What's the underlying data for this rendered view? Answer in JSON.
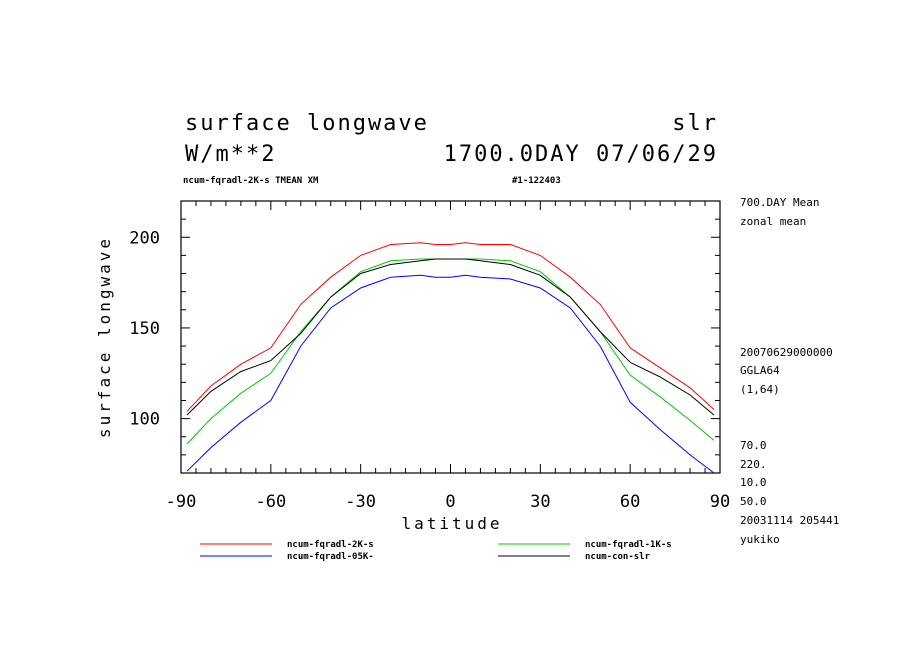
{
  "header": {
    "title_left": "surface longwave",
    "title_right": "slr",
    "unit": "W/m**2",
    "time": "1700.0DAY 07/06/29",
    "run": "ncum-fqradl-2K-s TMEAN XM",
    "run_id": "#1-122403"
  },
  "side_info": {
    "lines_top": [
      "700.DAY Mean",
      "zonal mean"
    ],
    "lines_mid": [
      "20070629000000",
      "GGLA64",
      "(1,64)"
    ],
    "lines_bottom": [
      "70.0",
      "220.",
      "10.0",
      "50.0",
      "20031114 205441",
      "yukiko"
    ]
  },
  "chart_data": {
    "type": "line",
    "title": "surface longwave",
    "xlabel": "latitude",
    "ylabel": "surface longwave",
    "xlim": [
      -90,
      90
    ],
    "ylim": [
      70,
      220
    ],
    "xticks": [
      -90,
      -60,
      -30,
      0,
      30,
      60,
      90
    ],
    "xtick_labels": [
      "-90",
      "-60",
      "-30",
      "0",
      "30",
      "60",
      "90"
    ],
    "yticks": [
      100,
      150,
      200
    ],
    "ytick_labels": [
      "100",
      "150",
      "200"
    ],
    "x": [
      -88,
      -80,
      -70,
      -60,
      -50,
      -40,
      -30,
      -20,
      -10,
      -5,
      0,
      5,
      10,
      20,
      30,
      40,
      50,
      60,
      70,
      80,
      88
    ],
    "series": [
      {
        "name": "ncum-fqradl-2K-s",
        "color": "#ff0000",
        "values": [
          104,
          118,
          130,
          139,
          163,
          178,
          190,
          196,
          197,
          196,
          196,
          197,
          196,
          196,
          190,
          178,
          163,
          139,
          128,
          117,
          105
        ]
      },
      {
        "name": "ncum-fqradl-1K-s",
        "color": "#00cc00",
        "values": [
          86,
          100,
          114,
          125,
          148,
          167,
          181,
          187,
          188,
          188,
          188,
          188,
          188,
          187,
          181,
          167,
          148,
          124,
          112,
          99,
          88
        ]
      },
      {
        "name": "ncum-fqradl-05K-",
        "color": "#0000ff",
        "values": [
          71,
          84,
          98,
          110,
          140,
          161,
          172,
          178,
          179,
          178,
          178,
          179,
          178,
          177,
          172,
          161,
          140,
          109,
          94,
          80,
          70
        ]
      },
      {
        "name": "ncum-con-slr",
        "color": "#000000",
        "values": [
          102,
          115,
          126,
          132,
          147,
          167,
          180,
          185,
          187,
          188,
          188,
          188,
          187,
          185,
          179,
          167,
          148,
          131,
          123,
          113,
          102
        ]
      }
    ],
    "legend_position": "bottom",
    "grid": false
  }
}
